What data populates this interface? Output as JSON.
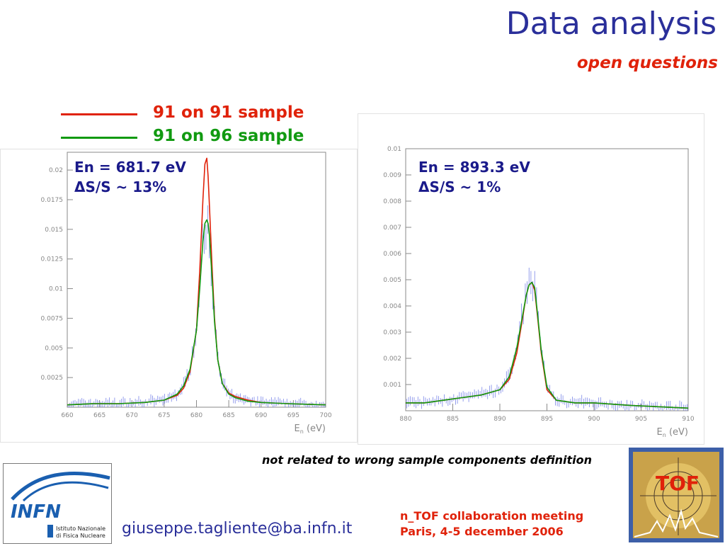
{
  "slide": {
    "title": "Data analysis",
    "subtitle": "open questions",
    "note": "not related to wrong sample components definition",
    "email": "giuseppe.tagliente@ba.infn.it",
    "meeting_line1": "n_TOF collaboration meeting",
    "meeting_line2": "Paris, 4-5 december 2006",
    "infn_logo_text": "INFN",
    "infn_logo_sub1": "Istituto Nazionale",
    "infn_logo_sub2": "di Fisica Nucleare",
    "tof_logo_text": "TOF"
  },
  "legend": [
    {
      "label": "91 on 91 sample",
      "color": "#e0220a"
    },
    {
      "label": "91 on 96 sample",
      "color": "#119a11"
    }
  ],
  "colors": {
    "title": "#2a2f9a",
    "accent": "#e0220a",
    "data_points": "#7a86e8"
  },
  "chart_data": [
    {
      "type": "line",
      "annotation_line1": "En = 681.7 eV",
      "annotation_line2": "ΔS/S ~ 13%",
      "xlabel": "E_n (eV)",
      "xlabel_main": "E",
      "xlabel_sub": "n",
      "xlabel_unit": "(eV)",
      "xlim": [
        660,
        700
      ],
      "ylim": [
        0,
        0.0215
      ],
      "xticks": [
        660,
        665,
        670,
        675,
        680,
        685,
        690,
        695,
        700
      ],
      "yticks": [
        0.0025,
        0.005,
        0.0075,
        0.01,
        0.0125,
        0.015,
        0.0175,
        0.02
      ],
      "ytick_labels": [
        "0.0025",
        "0.005",
        "0.0075",
        "0.01",
        "0.0125",
        "0.015",
        "0.0175",
        "0.02"
      ],
      "series": [
        {
          "color": "#e0220a",
          "x": [
            660,
            664,
            668,
            672,
            675,
            677,
            678,
            679,
            680,
            680.5,
            681,
            681.3,
            681.6,
            681.8,
            682,
            682.4,
            682.8,
            683.3,
            684,
            685,
            686,
            688,
            690,
            694,
            700
          ],
          "y": [
            0.0002,
            0.0003,
            0.0003,
            0.0004,
            0.0006,
            0.001,
            0.0016,
            0.003,
            0.0065,
            0.0115,
            0.0175,
            0.0205,
            0.021,
            0.0195,
            0.017,
            0.012,
            0.0075,
            0.004,
            0.002,
            0.0012,
            0.0009,
            0.0006,
            0.0004,
            0.0003,
            0.0002
          ]
        },
        {
          "color": "#119a11",
          "x": [
            660,
            664,
            668,
            672,
            675,
            677,
            678,
            679,
            680,
            680.5,
            681,
            681.3,
            681.6,
            681.8,
            682,
            682.4,
            682.8,
            683.3,
            684,
            685,
            686,
            688,
            690,
            694,
            700
          ],
          "y": [
            0.0002,
            0.0003,
            0.0003,
            0.0004,
            0.0006,
            0.0011,
            0.0018,
            0.0032,
            0.0065,
            0.01,
            0.014,
            0.0155,
            0.0158,
            0.0155,
            0.0145,
            0.011,
            0.0072,
            0.004,
            0.002,
            0.0011,
            0.0008,
            0.0005,
            0.0004,
            0.0003,
            0.0002
          ]
        }
      ]
    },
    {
      "type": "line",
      "annotation_line1": "En = 893.3 eV",
      "annotation_line2": "ΔS/S ~ 1%",
      "xlabel": "E_n (eV)",
      "xlabel_main": "E",
      "xlabel_sub": "n",
      "xlabel_unit": "(eV)",
      "xlim": [
        880,
        910
      ],
      "ylim": [
        0,
        0.01
      ],
      "xticks": [
        880,
        885,
        890,
        895,
        900,
        905,
        910
      ],
      "yticks": [
        0.001,
        0.002,
        0.003,
        0.004,
        0.005,
        0.006,
        0.007,
        0.008,
        0.009,
        0.01
      ],
      "ytick_labels": [
        "0.001",
        "0.002",
        "0.003",
        "0.004",
        "0.005",
        "0.006",
        "0.007",
        "0.008",
        "0.009",
        "0.01"
      ],
      "series": [
        {
          "color": "#e0220a",
          "x": [
            880,
            882,
            884,
            886,
            888,
            889,
            890,
            891,
            891.8,
            892.4,
            892.8,
            893.1,
            893.4,
            893.7,
            894,
            894.4,
            895,
            896,
            898,
            900,
            904,
            910
          ],
          "y": [
            0.0003,
            0.0003,
            0.0004,
            0.0005,
            0.0006,
            0.0007,
            0.0008,
            0.0012,
            0.0022,
            0.0035,
            0.0044,
            0.0048,
            0.0049,
            0.0046,
            0.0036,
            0.0022,
            0.0008,
            0.0004,
            0.0003,
            0.0003,
            0.0002,
            0.0001
          ]
        },
        {
          "color": "#119a11",
          "x": [
            880,
            882,
            884,
            886,
            888,
            889,
            890,
            891,
            891.8,
            892.4,
            892.8,
            893.1,
            893.4,
            893.7,
            894,
            894.4,
            895,
            896,
            898,
            900,
            904,
            910
          ],
          "y": [
            0.0003,
            0.0003,
            0.0004,
            0.0005,
            0.0006,
            0.0007,
            0.0008,
            0.0013,
            0.0024,
            0.0036,
            0.0044,
            0.0048,
            0.0049,
            0.0047,
            0.0037,
            0.0023,
            0.0009,
            0.0004,
            0.0003,
            0.0003,
            0.0002,
            0.0001
          ]
        }
      ]
    }
  ]
}
